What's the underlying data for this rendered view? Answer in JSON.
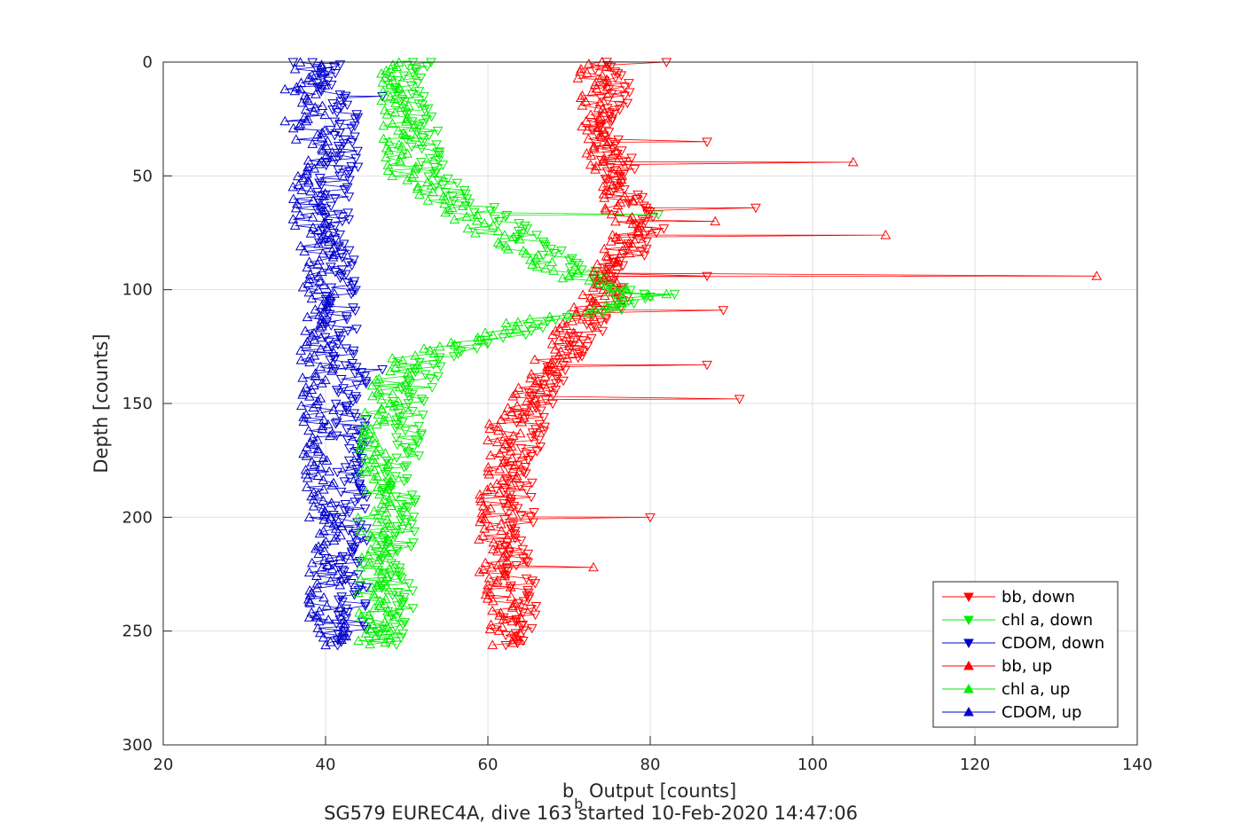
{
  "chart_data": {
    "type": "line",
    "xlabel_main": "b",
    "xlabel_sub": "b",
    "xlabel_rest": " Output [counts]",
    "ylabel": "Depth [counts]",
    "caption": "SG579 EUREC4A, dive 163 started 10-Feb-2020 14:47:06",
    "xlim": [
      20,
      140
    ],
    "ylim": [
      0,
      300
    ],
    "y_reversed": true,
    "grid": true,
    "xticks": [
      "20",
      "40",
      "60",
      "80",
      "100",
      "120",
      "140"
    ],
    "yticks": [
      "0",
      "50",
      "100",
      "150",
      "200",
      "250",
      "300"
    ],
    "legend_position": "bottom-right",
    "series": [
      {
        "name": "bb, down",
        "color": "#ff0000",
        "marker": "triangle-down",
        "profile": [
          [
            0,
            74
          ],
          [
            10,
            76
          ],
          [
            20,
            75
          ],
          [
            30,
            74
          ],
          [
            40,
            76
          ],
          [
            50,
            76
          ],
          [
            60,
            78
          ],
          [
            70,
            80
          ],
          [
            80,
            79
          ],
          [
            90,
            76
          ],
          [
            95,
            74
          ],
          [
            100,
            76
          ],
          [
            110,
            74
          ],
          [
            120,
            72
          ],
          [
            130,
            70
          ],
          [
            140,
            68
          ],
          [
            150,
            66
          ],
          [
            160,
            65
          ],
          [
            175,
            64
          ],
          [
            190,
            64
          ],
          [
            200,
            64
          ],
          [
            210,
            63
          ],
          [
            220,
            63
          ],
          [
            230,
            64
          ],
          [
            240,
            64
          ],
          [
            250,
            64
          ],
          [
            256,
            64
          ]
        ],
        "spikes": [
          [
            0,
            82
          ],
          [
            35,
            87
          ],
          [
            64,
            93
          ],
          [
            94,
            87
          ],
          [
            109,
            89
          ],
          [
            133,
            87
          ],
          [
            148,
            91
          ],
          [
            200,
            80
          ]
        ]
      },
      {
        "name": "chl a, down",
        "color": "#00ee00",
        "marker": "triangle-down",
        "profile": [
          [
            0,
            51
          ],
          [
            10,
            50
          ],
          [
            20,
            51
          ],
          [
            30,
            52
          ],
          [
            40,
            52
          ],
          [
            50,
            53
          ],
          [
            60,
            57
          ],
          [
            70,
            62
          ],
          [
            80,
            66
          ],
          [
            90,
            70
          ],
          [
            95,
            74
          ],
          [
            100,
            78
          ],
          [
            103,
            80
          ],
          [
            108,
            76
          ],
          [
            115,
            68
          ],
          [
            120,
            63
          ],
          [
            125,
            58
          ],
          [
            130,
            54
          ],
          [
            140,
            52
          ],
          [
            150,
            50
          ],
          [
            160,
            50
          ],
          [
            170,
            50
          ],
          [
            180,
            49
          ],
          [
            190,
            49
          ],
          [
            200,
            49
          ],
          [
            210,
            49
          ],
          [
            220,
            48
          ],
          [
            230,
            49
          ],
          [
            240,
            49
          ],
          [
            250,
            48
          ],
          [
            256,
            47
          ]
        ],
        "spikes": [
          [
            0,
            53
          ],
          [
            67,
            81
          ],
          [
            102,
            83
          ]
        ]
      },
      {
        "name": "CDOM, down",
        "color": "#0000cc",
        "marker": "triangle-down",
        "profile": [
          [
            0,
            40
          ],
          [
            10,
            41
          ],
          [
            20,
            42
          ],
          [
            30,
            42
          ],
          [
            40,
            42
          ],
          [
            50,
            41
          ],
          [
            60,
            41
          ],
          [
            70,
            41
          ],
          [
            80,
            41
          ],
          [
            90,
            42
          ],
          [
            100,
            42
          ],
          [
            110,
            42
          ],
          [
            120,
            42
          ],
          [
            130,
            42
          ],
          [
            140,
            43
          ],
          [
            150,
            43
          ],
          [
            160,
            43
          ],
          [
            170,
            43
          ],
          [
            180,
            43
          ],
          [
            190,
            43
          ],
          [
            200,
            43
          ],
          [
            210,
            43
          ],
          [
            220,
            43
          ],
          [
            230,
            43
          ],
          [
            240,
            43
          ],
          [
            250,
            43
          ],
          [
            256,
            43
          ]
        ],
        "spikes": [
          [
            0,
            36
          ],
          [
            46,
            44
          ],
          [
            135,
            47
          ],
          [
            15,
            47
          ]
        ]
      },
      {
        "name": "bb, up",
        "color": "#ff0000",
        "marker": "triangle-up",
        "profile": [
          [
            0,
            73
          ],
          [
            10,
            73
          ],
          [
            20,
            73
          ],
          [
            30,
            73
          ],
          [
            40,
            74
          ],
          [
            50,
            75
          ],
          [
            60,
            76
          ],
          [
            70,
            77
          ],
          [
            80,
            76
          ],
          [
            90,
            75
          ],
          [
            95,
            74
          ],
          [
            100,
            74
          ],
          [
            110,
            72
          ],
          [
            120,
            70
          ],
          [
            130,
            68
          ],
          [
            140,
            66
          ],
          [
            150,
            64
          ],
          [
            160,
            62
          ],
          [
            175,
            62
          ],
          [
            190,
            61
          ],
          [
            200,
            61
          ],
          [
            210,
            61
          ],
          [
            220,
            61
          ],
          [
            230,
            61
          ],
          [
            240,
            62
          ],
          [
            250,
            62
          ],
          [
            256,
            62
          ]
        ],
        "spikes": [
          [
            44,
            105
          ],
          [
            76,
            109
          ],
          [
            94,
            135
          ],
          [
            222,
            73
          ],
          [
            70,
            88
          ]
        ]
      },
      {
        "name": "chl a, up",
        "color": "#00ee00",
        "marker": "triangle-up",
        "profile": [
          [
            0,
            48
          ],
          [
            10,
            49
          ],
          [
            20,
            49
          ],
          [
            30,
            49
          ],
          [
            40,
            49
          ],
          [
            50,
            50
          ],
          [
            60,
            54
          ],
          [
            70,
            58
          ],
          [
            80,
            63
          ],
          [
            90,
            67
          ],
          [
            95,
            71
          ],
          [
            100,
            75
          ],
          [
            103,
            79
          ],
          [
            108,
            73
          ],
          [
            115,
            64
          ],
          [
            120,
            59
          ],
          [
            125,
            54
          ],
          [
            130,
            50
          ],
          [
            140,
            48
          ],
          [
            150,
            47
          ],
          [
            160,
            46
          ],
          [
            170,
            46
          ],
          [
            180,
            46
          ],
          [
            190,
            46
          ],
          [
            200,
            46
          ],
          [
            210,
            46
          ],
          [
            220,
            46
          ],
          [
            230,
            46
          ],
          [
            240,
            46
          ],
          [
            250,
            46
          ],
          [
            256,
            46
          ]
        ],
        "spikes": [
          [
            102,
            82
          ]
        ]
      },
      {
        "name": "CDOM, up",
        "color": "#0000cc",
        "marker": "triangle-up",
        "profile": [
          [
            0,
            38
          ],
          [
            10,
            38
          ],
          [
            20,
            38
          ],
          [
            30,
            38
          ],
          [
            40,
            39
          ],
          [
            50,
            38
          ],
          [
            60,
            38
          ],
          [
            70,
            38
          ],
          [
            80,
            39
          ],
          [
            90,
            39
          ],
          [
            100,
            39
          ],
          [
            110,
            39
          ],
          [
            120,
            39
          ],
          [
            130,
            39
          ],
          [
            140,
            39
          ],
          [
            150,
            39
          ],
          [
            160,
            39
          ],
          [
            170,
            39
          ],
          [
            180,
            39
          ],
          [
            190,
            39
          ],
          [
            200,
            40
          ],
          [
            210,
            40
          ],
          [
            220,
            40
          ],
          [
            230,
            40
          ],
          [
            240,
            40
          ],
          [
            250,
            41
          ],
          [
            256,
            41
          ]
        ],
        "spikes": [
          [
            26,
            35
          ],
          [
            12,
            35
          ],
          [
            200,
            38
          ],
          [
            244,
            38
          ]
        ]
      }
    ]
  }
}
